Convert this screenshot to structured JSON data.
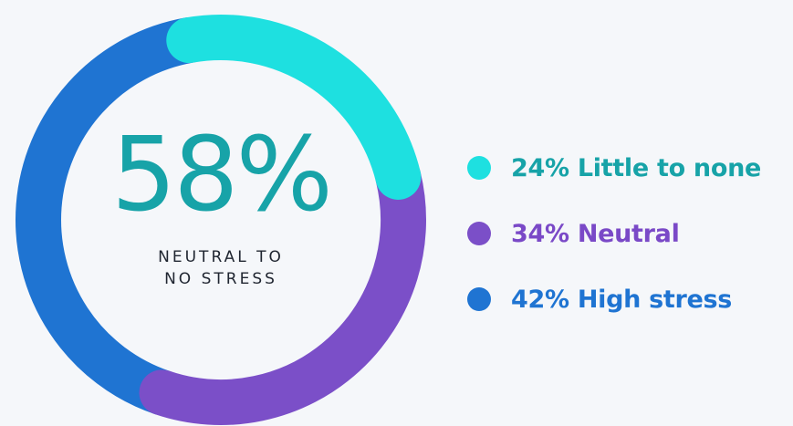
{
  "chart_data": {
    "type": "pie",
    "center_value": "58%",
    "center_label_lines": [
      "NEUTRAL TO",
      "NO STRESS"
    ],
    "series": [
      {
        "name": "Little to none",
        "label": "24% Little to none",
        "value": 24,
        "color": "#1ee0e0",
        "text_color": "#17a3a8"
      },
      {
        "name": "Neutral",
        "label": "34% Neutral",
        "value": 34,
        "color": "#7b4fc8",
        "text_color": "#7a49c7"
      },
      {
        "name": "High stress",
        "label": "42% High stress",
        "value": 42,
        "color": "#1f74d2",
        "text_color": "#1f74d2"
      }
    ]
  }
}
